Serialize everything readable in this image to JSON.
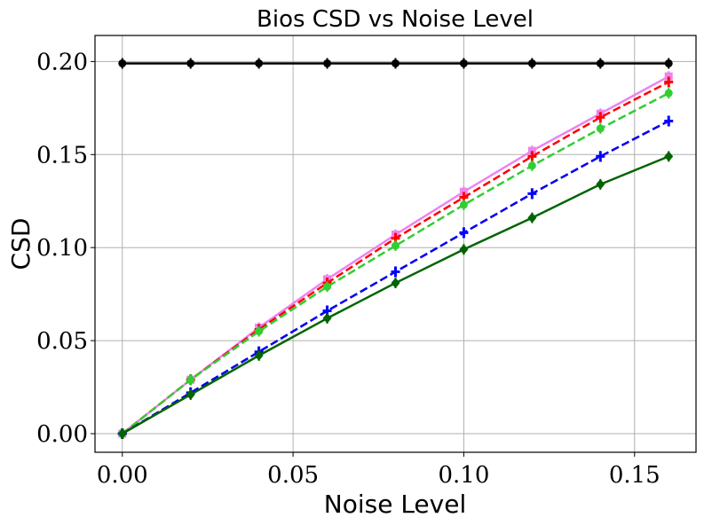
{
  "chart_data": {
    "type": "line",
    "title": "Bios CSD vs Noise Level",
    "xlabel": "Noise Level",
    "ylabel": "CSD",
    "xlim": [
      -0.008,
      0.168
    ],
    "ylim": [
      -0.01,
      0.214
    ],
    "xticks": [
      0.0,
      0.05,
      0.1,
      0.15
    ],
    "xtick_labels": [
      "0.00",
      "0.05",
      "0.10",
      "0.15"
    ],
    "yticks": [
      0.0,
      0.05,
      0.1,
      0.15,
      0.2
    ],
    "ytick_labels": [
      "0.00",
      "0.05",
      "0.10",
      "0.15",
      "0.20"
    ],
    "grid": true,
    "legend": false,
    "x": [
      0.0,
      0.02,
      0.04,
      0.06,
      0.08,
      0.1,
      0.12,
      0.14,
      0.16
    ],
    "series": [
      {
        "name": "black",
        "color": "#000000",
        "dash": "solid",
        "marker": "circle",
        "values": [
          0.199,
          0.199,
          0.199,
          0.199,
          0.199,
          0.199,
          0.199,
          0.199,
          0.199
        ]
      },
      {
        "name": "violet",
        "color": "#ee82ee",
        "dash": "solid",
        "marker": "square",
        "values": [
          0.0,
          0.029,
          0.057,
          0.083,
          0.107,
          0.13,
          0.152,
          0.172,
          0.192
        ]
      },
      {
        "name": "red",
        "color": "#ff0000",
        "dash": "dashed",
        "marker": "plus",
        "values": [
          0.0,
          0.029,
          0.056,
          0.081,
          0.105,
          0.127,
          0.149,
          0.17,
          0.189
        ]
      },
      {
        "name": "lime-green",
        "color": "#32cd32",
        "dash": "dashed",
        "marker": "circle",
        "values": [
          0.0,
          0.029,
          0.055,
          0.079,
          0.101,
          0.123,
          0.144,
          0.164,
          0.183
        ]
      },
      {
        "name": "orange",
        "color": "#ffa500",
        "dash": "dashed",
        "marker": "none",
        "values": [
          0.0,
          0.022,
          0.044,
          0.066,
          0.087,
          0.108,
          0.129,
          0.149,
          0.168
        ]
      },
      {
        "name": "blue",
        "color": "#0000ff",
        "dash": "dashed",
        "marker": "plus",
        "values": [
          0.0,
          0.022,
          0.044,
          0.066,
          0.087,
          0.108,
          0.129,
          0.149,
          0.168
        ]
      },
      {
        "name": "dark-green",
        "color": "#006400",
        "dash": "solid",
        "marker": "diamond",
        "values": [
          0.0,
          0.021,
          0.042,
          0.062,
          0.081,
          0.099,
          0.116,
          0.134,
          0.149
        ]
      }
    ]
  }
}
